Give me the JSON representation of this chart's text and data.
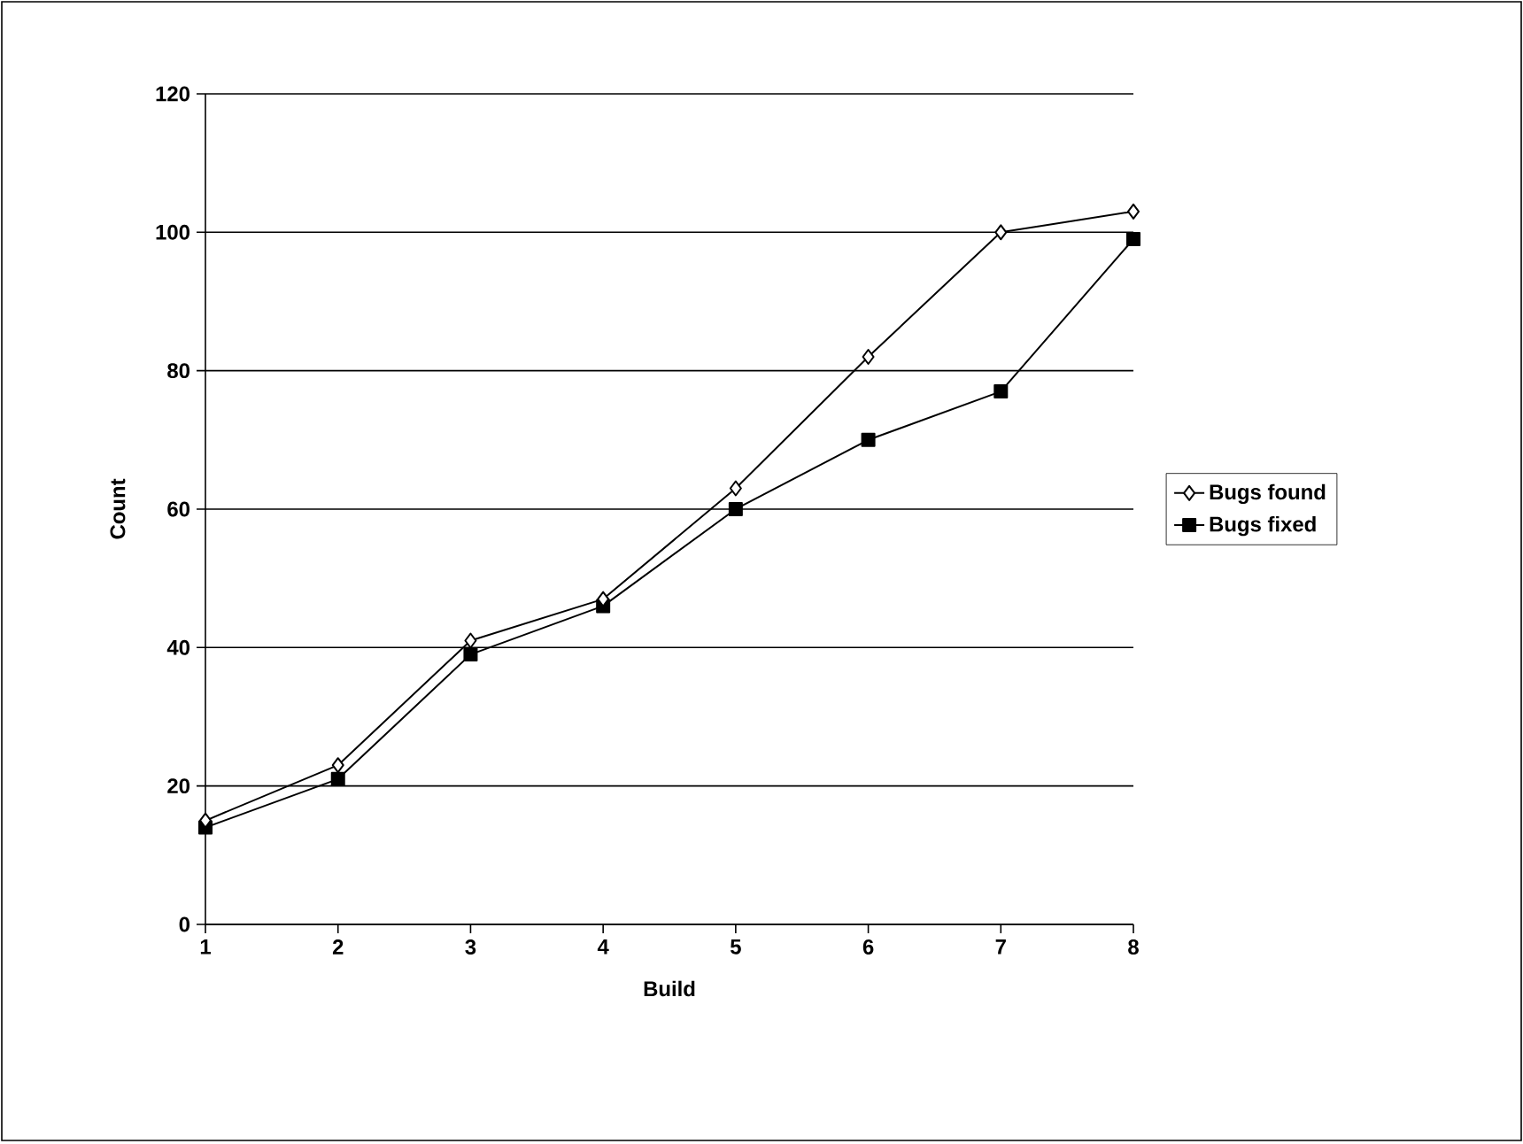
{
  "chart_data": {
    "type": "line",
    "xlabel": "Build",
    "ylabel": "Count",
    "x": [
      1,
      2,
      3,
      4,
      5,
      6,
      7,
      8
    ],
    "series": [
      {
        "name": "Bugs found",
        "color": "#000000",
        "marker": "diamond",
        "values": [
          15,
          23,
          41,
          47,
          63,
          82,
          100,
          103
        ]
      },
      {
        "name": "Bugs fixed",
        "color": "#000000",
        "marker": "square",
        "values": [
          14,
          21,
          39,
          46,
          60,
          70,
          77,
          99
        ]
      }
    ],
    "xlim": [
      1,
      8
    ],
    "xticks": [
      1,
      2,
      3,
      4,
      5,
      6,
      7,
      8
    ],
    "ylim": [
      0,
      120
    ],
    "yticks": [
      0,
      20,
      40,
      60,
      80,
      100,
      120
    ],
    "grid": "y",
    "legend": "right",
    "line_style": "solid"
  }
}
